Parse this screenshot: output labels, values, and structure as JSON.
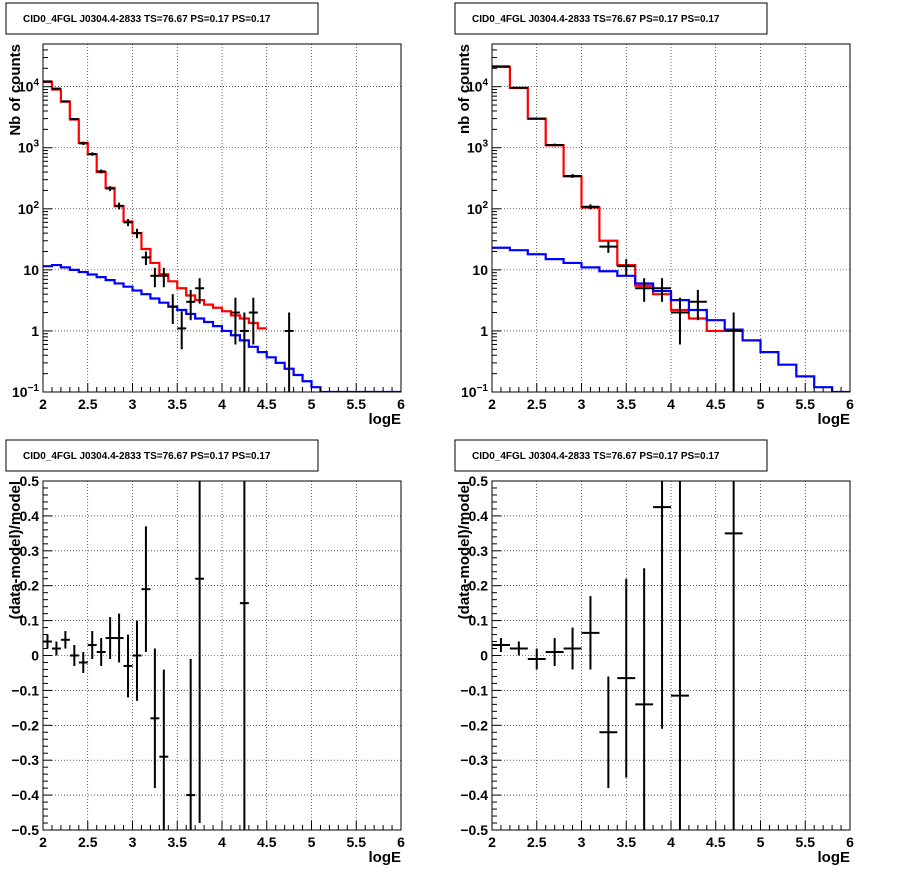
{
  "colors": {
    "data": "#000000",
    "model": "#ff0000",
    "background": "#0000ff"
  },
  "chart_data": [
    {
      "type": "line",
      "title": "CID0_4FGL J0304.4-2833 TS=76.67 PS=0.17 PS=0.17",
      "xlabel": "logE",
      "ylabel": "Nb of counts",
      "log_y": true,
      "xlim": [
        2,
        6
      ],
      "ylim": [
        0.1,
        50000
      ],
      "x_ticks": [
        "2",
        "2.5",
        "3",
        "3.5",
        "4",
        "4.5",
        "5",
        "5.5",
        "6"
      ],
      "y_ticks": [
        {
          "v": 0.1,
          "base": "10",
          "exp": "−1"
        },
        {
          "v": 1,
          "text": "1"
        },
        {
          "v": 10,
          "text": "10"
        },
        {
          "v": 100,
          "base": "10",
          "exp": "2"
        },
        {
          "v": 1000,
          "base": "10",
          "exp": "3"
        },
        {
          "v": 10000,
          "base": "10",
          "exp": "4"
        }
      ],
      "grid": true,
      "bin_edges": [
        2.0,
        2.1,
        2.2,
        2.3,
        2.4,
        2.5,
        2.6,
        2.7,
        2.8,
        2.9,
        3.0,
        3.1,
        3.2,
        3.3,
        3.4,
        3.5,
        3.6,
        3.7,
        3.8,
        3.9,
        4.0,
        4.1,
        4.2,
        4.3,
        4.4,
        4.5,
        4.6,
        4.7,
        4.8,
        4.9,
        5.0,
        5.1,
        5.2,
        5.3,
        5.4,
        5.5,
        5.6,
        5.7,
        5.8,
        5.9,
        6.0
      ],
      "series": [
        {
          "kind": "histogram",
          "color": "model",
          "values": [
            12000,
            9000,
            5700,
            2900,
            1200,
            780,
            400,
            220,
            110,
            62,
            40,
            22,
            13,
            8.5,
            6.5,
            5.0,
            3.8,
            3.2,
            2.7,
            2.4,
            2.1,
            1.8,
            1.6,
            1.35,
            1.1
          ]
        },
        {
          "kind": "histogram",
          "color": "background",
          "values": [
            11.5,
            12,
            11,
            10,
            9.2,
            8.4,
            7.6,
            6.8,
            6.0,
            5.3,
            4.6,
            4.0,
            3.4,
            2.9,
            2.5,
            2.2,
            1.9,
            1.6,
            1.4,
            1.2,
            1.0,
            0.85,
            0.7,
            0.55,
            0.45,
            0.37,
            0.3,
            0.24,
            0.19,
            0.15,
            0.12,
            0.1,
            0.1,
            0.1,
            0.1,
            0.1,
            0.1,
            0.1,
            0.1,
            0.1
          ]
        },
        {
          "kind": "points",
          "color": "data",
          "points": [
            {
              "x": 2.05,
              "y": 12200,
              "lo": 12000,
              "hi": 12400
            },
            {
              "x": 2.15,
              "y": 9300,
              "lo": 9100,
              "hi": 9500
            },
            {
              "x": 2.25,
              "y": 5750,
              "lo": 5600,
              "hi": 5900
            },
            {
              "x": 2.35,
              "y": 2950,
              "lo": 2850,
              "hi": 3050
            },
            {
              "x": 2.45,
              "y": 1180,
              "lo": 1110,
              "hi": 1250
            },
            {
              "x": 2.55,
              "y": 790,
              "lo": 740,
              "hi": 840
            },
            {
              "x": 2.65,
              "y": 410,
              "lo": 380,
              "hi": 440
            },
            {
              "x": 2.75,
              "y": 215,
              "lo": 195,
              "hi": 235
            },
            {
              "x": 2.85,
              "y": 112,
              "lo": 98,
              "hi": 126
            },
            {
              "x": 2.95,
              "y": 60,
              "lo": 52,
              "hi": 68
            },
            {
              "x": 3.05,
              "y": 40,
              "lo": 33,
              "hi": 47
            },
            {
              "x": 3.15,
              "y": 16,
              "lo": 12,
              "hi": 20
            },
            {
              "x": 3.25,
              "y": 8,
              "lo": 5.2,
              "hi": 10.8
            },
            {
              "x": 3.35,
              "y": 8,
              "lo": 5.2,
              "hi": 10.8
            },
            {
              "x": 3.45,
              "y": 2.5,
              "lo": 1.3,
              "hi": 4
            },
            {
              "x": 3.55,
              "y": 1.1,
              "lo": 0.5,
              "hi": 2.1
            },
            {
              "x": 3.65,
              "y": 3,
              "lo": 1.5,
              "hi": 4.7
            },
            {
              "x": 3.75,
              "y": 5,
              "lo": 2.8,
              "hi": 7.3
            },
            {
              "x": 4.15,
              "y": 2,
              "lo": 0.6,
              "hi": 3.5
            },
            {
              "x": 4.25,
              "y": 1,
              "lo": 0.1,
              "hi": 2.0
            },
            {
              "x": 4.35,
              "y": 2,
              "lo": 0.6,
              "hi": 3.5
            },
            {
              "x": 4.75,
              "y": 1,
              "lo": 0.1,
              "hi": 2.0
            }
          ]
        }
      ]
    },
    {
      "type": "line",
      "title": "CID0_4FGL J0304.4-2833 TS=76.67 PS=0.17 PS=0.17",
      "xlabel": "logE",
      "ylabel": "nb of counts",
      "log_y": true,
      "xlim": [
        2,
        6
      ],
      "ylim": [
        0.1,
        50000
      ],
      "x_ticks": [
        "2",
        "2.5",
        "3",
        "3.5",
        "4",
        "4.5",
        "5",
        "5.5",
        "6"
      ],
      "y_ticks": [
        {
          "v": 0.1,
          "base": "10",
          "exp": "−1"
        },
        {
          "v": 1,
          "text": "1"
        },
        {
          "v": 10,
          "text": "10"
        },
        {
          "v": 100,
          "base": "10",
          "exp": "2"
        },
        {
          "v": 1000,
          "base": "10",
          "exp": "3"
        },
        {
          "v": 10000,
          "base": "10",
          "exp": "4"
        }
      ],
      "grid": true,
      "bin_edges": [
        2.0,
        2.2,
        2.4,
        2.6,
        2.8,
        3.0,
        3.2,
        3.4,
        3.6,
        3.8,
        4.0,
        4.2,
        4.4,
        4.6,
        4.8,
        5.0,
        5.2,
        5.4,
        5.6,
        5.8,
        6.0
      ],
      "series": [
        {
          "kind": "histogram",
          "color": "model",
          "values": [
            21000,
            9500,
            3000,
            1100,
            340,
            105,
            30,
            12,
            5.5,
            4.0,
            2.2,
            1.6,
            1.0
          ]
        },
        {
          "kind": "histogram",
          "color": "background",
          "values": [
            23,
            21,
            18,
            15,
            13,
            11,
            9.5,
            8.0,
            6.0,
            4.5,
            3.2,
            2.2,
            1.5,
            1.05,
            0.7,
            0.45,
            0.28,
            0.18,
            0.12,
            0.1
          ]
        },
        {
          "kind": "points",
          "color": "data",
          "points": [
            {
              "x": 2.1,
              "y": 21500,
              "lo": 21200,
              "hi": 21800
            },
            {
              "x": 2.3,
              "y": 9600,
              "lo": 9400,
              "hi": 9800
            },
            {
              "x": 2.5,
              "y": 2980,
              "lo": 2880,
              "hi": 3080
            },
            {
              "x": 2.7,
              "y": 1110,
              "lo": 1050,
              "hi": 1170
            },
            {
              "x": 2.9,
              "y": 345,
              "lo": 320,
              "hi": 370
            },
            {
              "x": 3.1,
              "y": 108,
              "lo": 98,
              "hi": 118
            },
            {
              "x": 3.3,
              "y": 24,
              "lo": 19,
              "hi": 29
            },
            {
              "x": 3.5,
              "y": 11.5,
              "lo": 8,
              "hi": 15
            },
            {
              "x": 3.7,
              "y": 5,
              "lo": 3,
              "hi": 7.3
            },
            {
              "x": 3.9,
              "y": 5,
              "lo": 3,
              "hi": 7.3
            },
            {
              "x": 4.1,
              "y": 2,
              "lo": 0.6,
              "hi": 3.5
            },
            {
              "x": 4.3,
              "y": 3,
              "lo": 1.5,
              "hi": 4.7
            },
            {
              "x": 4.7,
              "y": 1,
              "lo": 0.1,
              "hi": 2.0
            }
          ]
        }
      ]
    },
    {
      "type": "scatter",
      "title": "CID0_4FGL J0304.4-2833 TS=76.67 PS=0.17 PS=0.17",
      "xlabel": "logE",
      "ylabel": "(data-model)/model",
      "log_y": false,
      "xlim": [
        2,
        6
      ],
      "ylim": [
        -0.5,
        0.5
      ],
      "x_ticks": [
        "2",
        "2.5",
        "3",
        "3.5",
        "4",
        "4.5",
        "5",
        "5.5",
        "6"
      ],
      "y_ticks": [
        {
          "v": -0.5,
          "text": "−0.5"
        },
        {
          "v": -0.4,
          "text": "−0.4"
        },
        {
          "v": -0.3,
          "text": "−0.3"
        },
        {
          "v": -0.2,
          "text": "−0.2"
        },
        {
          "v": -0.1,
          "text": "−0.1"
        },
        {
          "v": 0,
          "text": "0"
        },
        {
          "v": 0.1,
          "text": "0.1"
        },
        {
          "v": 0.2,
          "text": "0.2"
        },
        {
          "v": 0.3,
          "text": "0.3"
        },
        {
          "v": 0.4,
          "text": "0.4"
        },
        {
          "v": 0.5,
          "text": "0.5"
        }
      ],
      "grid": true,
      "xerr": 0.05,
      "series": [
        {
          "kind": "points",
          "color": "data",
          "points": [
            {
              "x": 2.05,
              "y": 0.04,
              "lo": 0.02,
              "hi": 0.06
            },
            {
              "x": 2.15,
              "y": 0.02,
              "lo": 0.0,
              "hi": 0.04
            },
            {
              "x": 2.25,
              "y": 0.045,
              "lo": 0.02,
              "hi": 0.07
            },
            {
              "x": 2.35,
              "y": 0.0,
              "lo": -0.03,
              "hi": 0.03
            },
            {
              "x": 2.45,
              "y": -0.02,
              "lo": -0.05,
              "hi": 0.01
            },
            {
              "x": 2.55,
              "y": 0.03,
              "lo": -0.01,
              "hi": 0.07
            },
            {
              "x": 2.65,
              "y": 0.01,
              "lo": -0.03,
              "hi": 0.05
            },
            {
              "x": 2.75,
              "y": 0.05,
              "lo": -0.01,
              "hi": 0.11
            },
            {
              "x": 2.85,
              "y": 0.05,
              "lo": -0.02,
              "hi": 0.12
            },
            {
              "x": 2.95,
              "y": -0.03,
              "lo": -0.12,
              "hi": 0.06
            },
            {
              "x": 3.05,
              "y": 0.0,
              "lo": -0.13,
              "hi": 0.1
            },
            {
              "x": 3.15,
              "y": 0.19,
              "lo": 0.01,
              "hi": 0.37
            },
            {
              "x": 3.25,
              "y": -0.18,
              "lo": -0.38,
              "hi": 0.02
            },
            {
              "x": 3.35,
              "y": -0.29,
              "lo": -0.5,
              "hi": -0.04
            },
            {
              "x": 3.65,
              "y": -0.4,
              "lo": -0.5,
              "hi": -0.01
            },
            {
              "x": 3.75,
              "y": 0.22,
              "lo": -0.48,
              "hi": 0.5
            },
            {
              "x": 4.25,
              "y": 0.15,
              "lo": -0.5,
              "hi": 0.5
            }
          ]
        }
      ]
    },
    {
      "type": "scatter",
      "title": "CID0_4FGL J0304.4-2833 TS=76.67 PS=0.17 PS=0.17",
      "xlabel": "logE",
      "ylabel": "(data-model)/model",
      "log_y": false,
      "xlim": [
        2,
        6
      ],
      "ylim": [
        -0.5,
        0.5
      ],
      "x_ticks": [
        "2",
        "2.5",
        "3",
        "3.5",
        "4",
        "4.5",
        "5",
        "5.5",
        "6"
      ],
      "y_ticks": [
        {
          "v": -0.5,
          "text": "−0.5"
        },
        {
          "v": -0.4,
          "text": "−0.4"
        },
        {
          "v": -0.3,
          "text": "−0.3"
        },
        {
          "v": -0.2,
          "text": "−0.2"
        },
        {
          "v": -0.1,
          "text": "−0.1"
        },
        {
          "v": 0,
          "text": "0"
        },
        {
          "v": 0.1,
          "text": "0.1"
        },
        {
          "v": 0.2,
          "text": "0.2"
        },
        {
          "v": 0.3,
          "text": "0.3"
        },
        {
          "v": 0.4,
          "text": "0.4"
        },
        {
          "v": 0.5,
          "text": "0.5"
        }
      ],
      "grid": true,
      "xerr": 0.1,
      "series": [
        {
          "kind": "points",
          "color": "data",
          "points": [
            {
              "x": 2.1,
              "y": 0.03,
              "lo": 0.01,
              "hi": 0.05
            },
            {
              "x": 2.3,
              "y": 0.02,
              "lo": 0.0,
              "hi": 0.04
            },
            {
              "x": 2.5,
              "y": -0.01,
              "lo": -0.04,
              "hi": 0.02
            },
            {
              "x": 2.7,
              "y": 0.01,
              "lo": -0.03,
              "hi": 0.05
            },
            {
              "x": 2.9,
              "y": 0.02,
              "lo": -0.04,
              "hi": 0.08
            },
            {
              "x": 3.1,
              "y": 0.065,
              "lo": -0.04,
              "hi": 0.17
            },
            {
              "x": 3.3,
              "y": -0.22,
              "lo": -0.38,
              "hi": -0.06
            },
            {
              "x": 3.5,
              "y": -0.065,
              "lo": -0.35,
              "hi": 0.22
            },
            {
              "x": 3.7,
              "y": -0.14,
              "lo": -0.5,
              "hi": 0.25
            },
            {
              "x": 3.9,
              "y": 0.425,
              "lo": -0.21,
              "hi": 0.5
            },
            {
              "x": 4.1,
              "y": -0.115,
              "lo": -0.5,
              "hi": 0.5
            },
            {
              "x": 4.7,
              "y": 0.35,
              "lo": -0.5,
              "hi": 0.5
            }
          ]
        }
      ]
    }
  ]
}
